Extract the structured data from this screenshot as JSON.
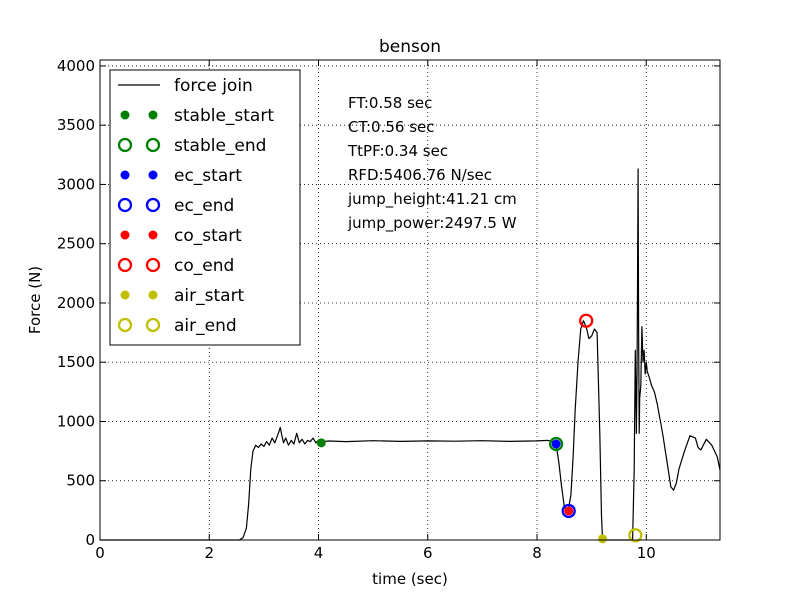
{
  "chart_data": {
    "type": "line",
    "title": "benson",
    "xlabel": "time (sec)",
    "ylabel": "Force (N)",
    "xlim": [
      0,
      11.35
    ],
    "ylim": [
      0,
      4050
    ],
    "xticks": [
      0,
      2,
      4,
      6,
      8,
      10
    ],
    "yticks": [
      0,
      500,
      1000,
      1500,
      2000,
      2500,
      3000,
      3500,
      4000
    ],
    "grid": true,
    "grid_style": "dotted",
    "legend_placement": "top-left",
    "series": [
      {
        "name": "force join",
        "color": "#000000",
        "x": [
          0,
          2.55,
          2.62,
          2.68,
          2.72,
          2.76,
          2.8,
          2.85,
          2.9,
          2.95,
          3.0,
          3.05,
          3.1,
          3.15,
          3.2,
          3.25,
          3.3,
          3.33,
          3.36,
          3.4,
          3.45,
          3.5,
          3.55,
          3.6,
          3.65,
          3.7,
          3.75,
          3.8,
          3.85,
          3.9,
          3.95,
          4.0,
          4.05,
          4.2,
          4.5,
          5.0,
          5.5,
          6.0,
          6.5,
          7.0,
          7.5,
          8.0,
          8.2,
          8.3,
          8.35,
          8.4,
          8.45,
          8.5,
          8.55,
          8.58,
          8.62,
          8.66,
          8.7,
          8.75,
          8.8,
          8.85,
          8.9,
          8.95,
          9.0,
          9.05,
          9.1,
          9.15,
          9.18,
          9.2,
          9.25,
          9.5,
          9.75,
          9.78,
          9.8,
          9.82,
          9.83,
          9.84,
          9.85,
          9.86,
          9.87,
          9.88,
          9.9,
          9.92,
          9.94,
          9.96,
          9.98,
          10.0,
          10.02,
          10.05,
          10.1,
          10.15,
          10.2,
          10.3,
          10.4,
          10.45,
          10.5,
          10.55,
          10.6,
          10.7,
          10.8,
          10.9,
          10.95,
          11.0,
          11.1,
          11.2,
          11.3,
          11.35
        ],
        "y": [
          0,
          0,
          20,
          100,
          300,
          600,
          750,
          800,
          780,
          810,
          790,
          830,
          800,
          860,
          820,
          880,
          950,
          880,
          820,
          860,
          800,
          840,
          810,
          900,
          820,
          850,
          810,
          840,
          830,
          860,
          820,
          840,
          830,
          835,
          830,
          838,
          832,
          836,
          834,
          838,
          832,
          836,
          840,
          830,
          810,
          650,
          450,
          280,
          250,
          270,
          380,
          700,
          1100,
          1500,
          1780,
          1850,
          1800,
          1700,
          1720,
          1780,
          1750,
          900,
          200,
          0,
          0,
          0,
          0,
          600,
          1600,
          900,
          1400,
          2100,
          3130,
          1800,
          900,
          1200,
          1300,
          1800,
          1500,
          1600,
          1400,
          1500,
          1420,
          1380,
          1300,
          1250,
          1150,
          900,
          600,
          450,
          420,
          480,
          600,
          750,
          880,
          860,
          780,
          760,
          850,
          800,
          700,
          590
        ]
      }
    ],
    "markers": [
      {
        "name": "stable_start",
        "x": 4.05,
        "y": 820,
        "color": "#008000",
        "filled": true
      },
      {
        "name": "stable_end",
        "x": 8.35,
        "y": 810,
        "color": "#008000",
        "filled": false
      },
      {
        "name": "ec_start",
        "x": 8.35,
        "y": 810,
        "color": "#0000ff",
        "filled": true
      },
      {
        "name": "ec_end",
        "x": 8.58,
        "y": 245,
        "color": "#0000ff",
        "filled": false
      },
      {
        "name": "co_start",
        "x": 8.58,
        "y": 245,
        "color": "#ff0000",
        "filled": true
      },
      {
        "name": "co_end",
        "x": 8.9,
        "y": 1850,
        "color": "#ff0000",
        "filled": false
      },
      {
        "name": "air_start",
        "x": 9.2,
        "y": 10,
        "color": "#bfbf00",
        "filled": true
      },
      {
        "name": "air_end",
        "x": 9.8,
        "y": 40,
        "color": "#bfbf00",
        "filled": false
      }
    ],
    "legend": [
      {
        "label": "force join",
        "kind": "line",
        "color": "#000000"
      },
      {
        "label": "stable_start",
        "kind": "dot",
        "color": "#008000"
      },
      {
        "label": "stable_end",
        "kind": "ring",
        "color": "#008000"
      },
      {
        "label": "ec_start",
        "kind": "dot",
        "color": "#0000ff"
      },
      {
        "label": "ec_end",
        "kind": "ring",
        "color": "#0000ff"
      },
      {
        "label": "co_start",
        "kind": "dot",
        "color": "#ff0000"
      },
      {
        "label": "co_end",
        "kind": "ring",
        "color": "#ff0000"
      },
      {
        "label": "air_start",
        "kind": "dot",
        "color": "#bfbf00"
      },
      {
        "label": "air_end",
        "kind": "ring",
        "color": "#bfbf00"
      }
    ],
    "annotations": [
      "FT:0.58 sec",
      "CT:0.56 sec",
      "TtPF:0.34 sec",
      "RFD:5406.76 N/sec",
      "jump_height:41.21 cm",
      "jump_power:2497.5 W"
    ]
  }
}
